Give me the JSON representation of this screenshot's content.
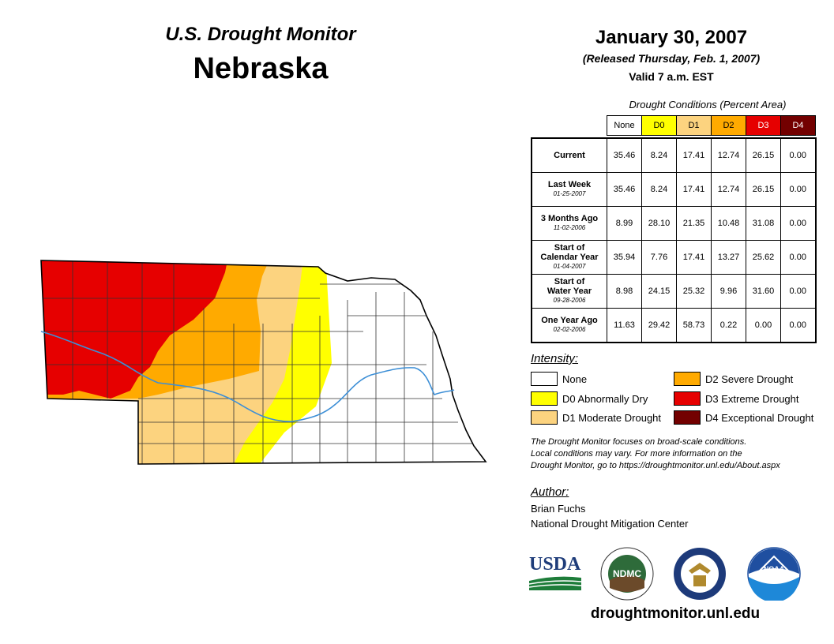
{
  "header": {
    "subtitle": "U.S. Drought Monitor",
    "state": "Nebraska",
    "date": "January 30, 2007",
    "released": "(Released Thursday, Feb. 1, 2007)",
    "valid": "Valid 7 a.m. EST"
  },
  "table": {
    "caption": "Drought Conditions (Percent Area)",
    "columns": [
      "None",
      "D0",
      "D1",
      "D2",
      "D3",
      "D4"
    ],
    "column_colors": [
      "#ffffff",
      "#ffff00",
      "#fcd37f",
      "#ffaa00",
      "#e60000",
      "#730000"
    ],
    "rows": [
      {
        "label": "Current",
        "label2": "",
        "date": "",
        "values": [
          "35.46",
          "8.24",
          "17.41",
          "12.74",
          "26.15",
          "0.00"
        ]
      },
      {
        "label": "Last Week",
        "label2": "",
        "date": "01-25-2007",
        "values": [
          "35.46",
          "8.24",
          "17.41",
          "12.74",
          "26.15",
          "0.00"
        ]
      },
      {
        "label": "3 Months Ago",
        "label2": "",
        "date": "11-02-2006",
        "values": [
          "8.99",
          "28.10",
          "21.35",
          "10.48",
          "31.08",
          "0.00"
        ]
      },
      {
        "label": "Start of",
        "label2": "Calendar Year",
        "date": "01-04-2007",
        "values": [
          "35.94",
          "7.76",
          "17.41",
          "13.27",
          "25.62",
          "0.00"
        ]
      },
      {
        "label": "Start of",
        "label2": "Water Year",
        "date": "09-28-2006",
        "values": [
          "8.98",
          "24.15",
          "25.32",
          "9.96",
          "31.60",
          "0.00"
        ]
      },
      {
        "label": "One Year Ago",
        "label2": "",
        "date": "02-02-2006",
        "values": [
          "11.63",
          "29.42",
          "58.73",
          "0.22",
          "0.00",
          "0.00"
        ]
      }
    ]
  },
  "legend": {
    "title": "Intensity:",
    "items": [
      {
        "label": "None",
        "color": "#ffffff"
      },
      {
        "label": "D0 Abnormally Dry",
        "color": "#ffff00"
      },
      {
        "label": "D1 Moderate Drought",
        "color": "#fcd37f"
      },
      {
        "label": "D2 Severe Drought",
        "color": "#ffaa00"
      },
      {
        "label": "D3 Extreme Drought",
        "color": "#e60000"
      },
      {
        "label": "D4 Exceptional Drought",
        "color": "#730000"
      }
    ]
  },
  "note": {
    "line1": "The Drought Monitor focuses on broad-scale conditions.",
    "line2": "Local conditions may vary. For more information on the",
    "line3": "Drought Monitor, go to https://droughtmonitor.unl.edu/About.aspx"
  },
  "author": {
    "title": "Author:",
    "name": "Brian Fuchs",
    "org": "National Drought Mitigation Center"
  },
  "logos": {
    "usda": "USDA",
    "ndmc": "NDMC",
    "noaa": "NOAA"
  },
  "website": "droughtmonitor.unl.edu",
  "colors": {
    "river": "#3d8fd6",
    "county_line": "#333333"
  }
}
